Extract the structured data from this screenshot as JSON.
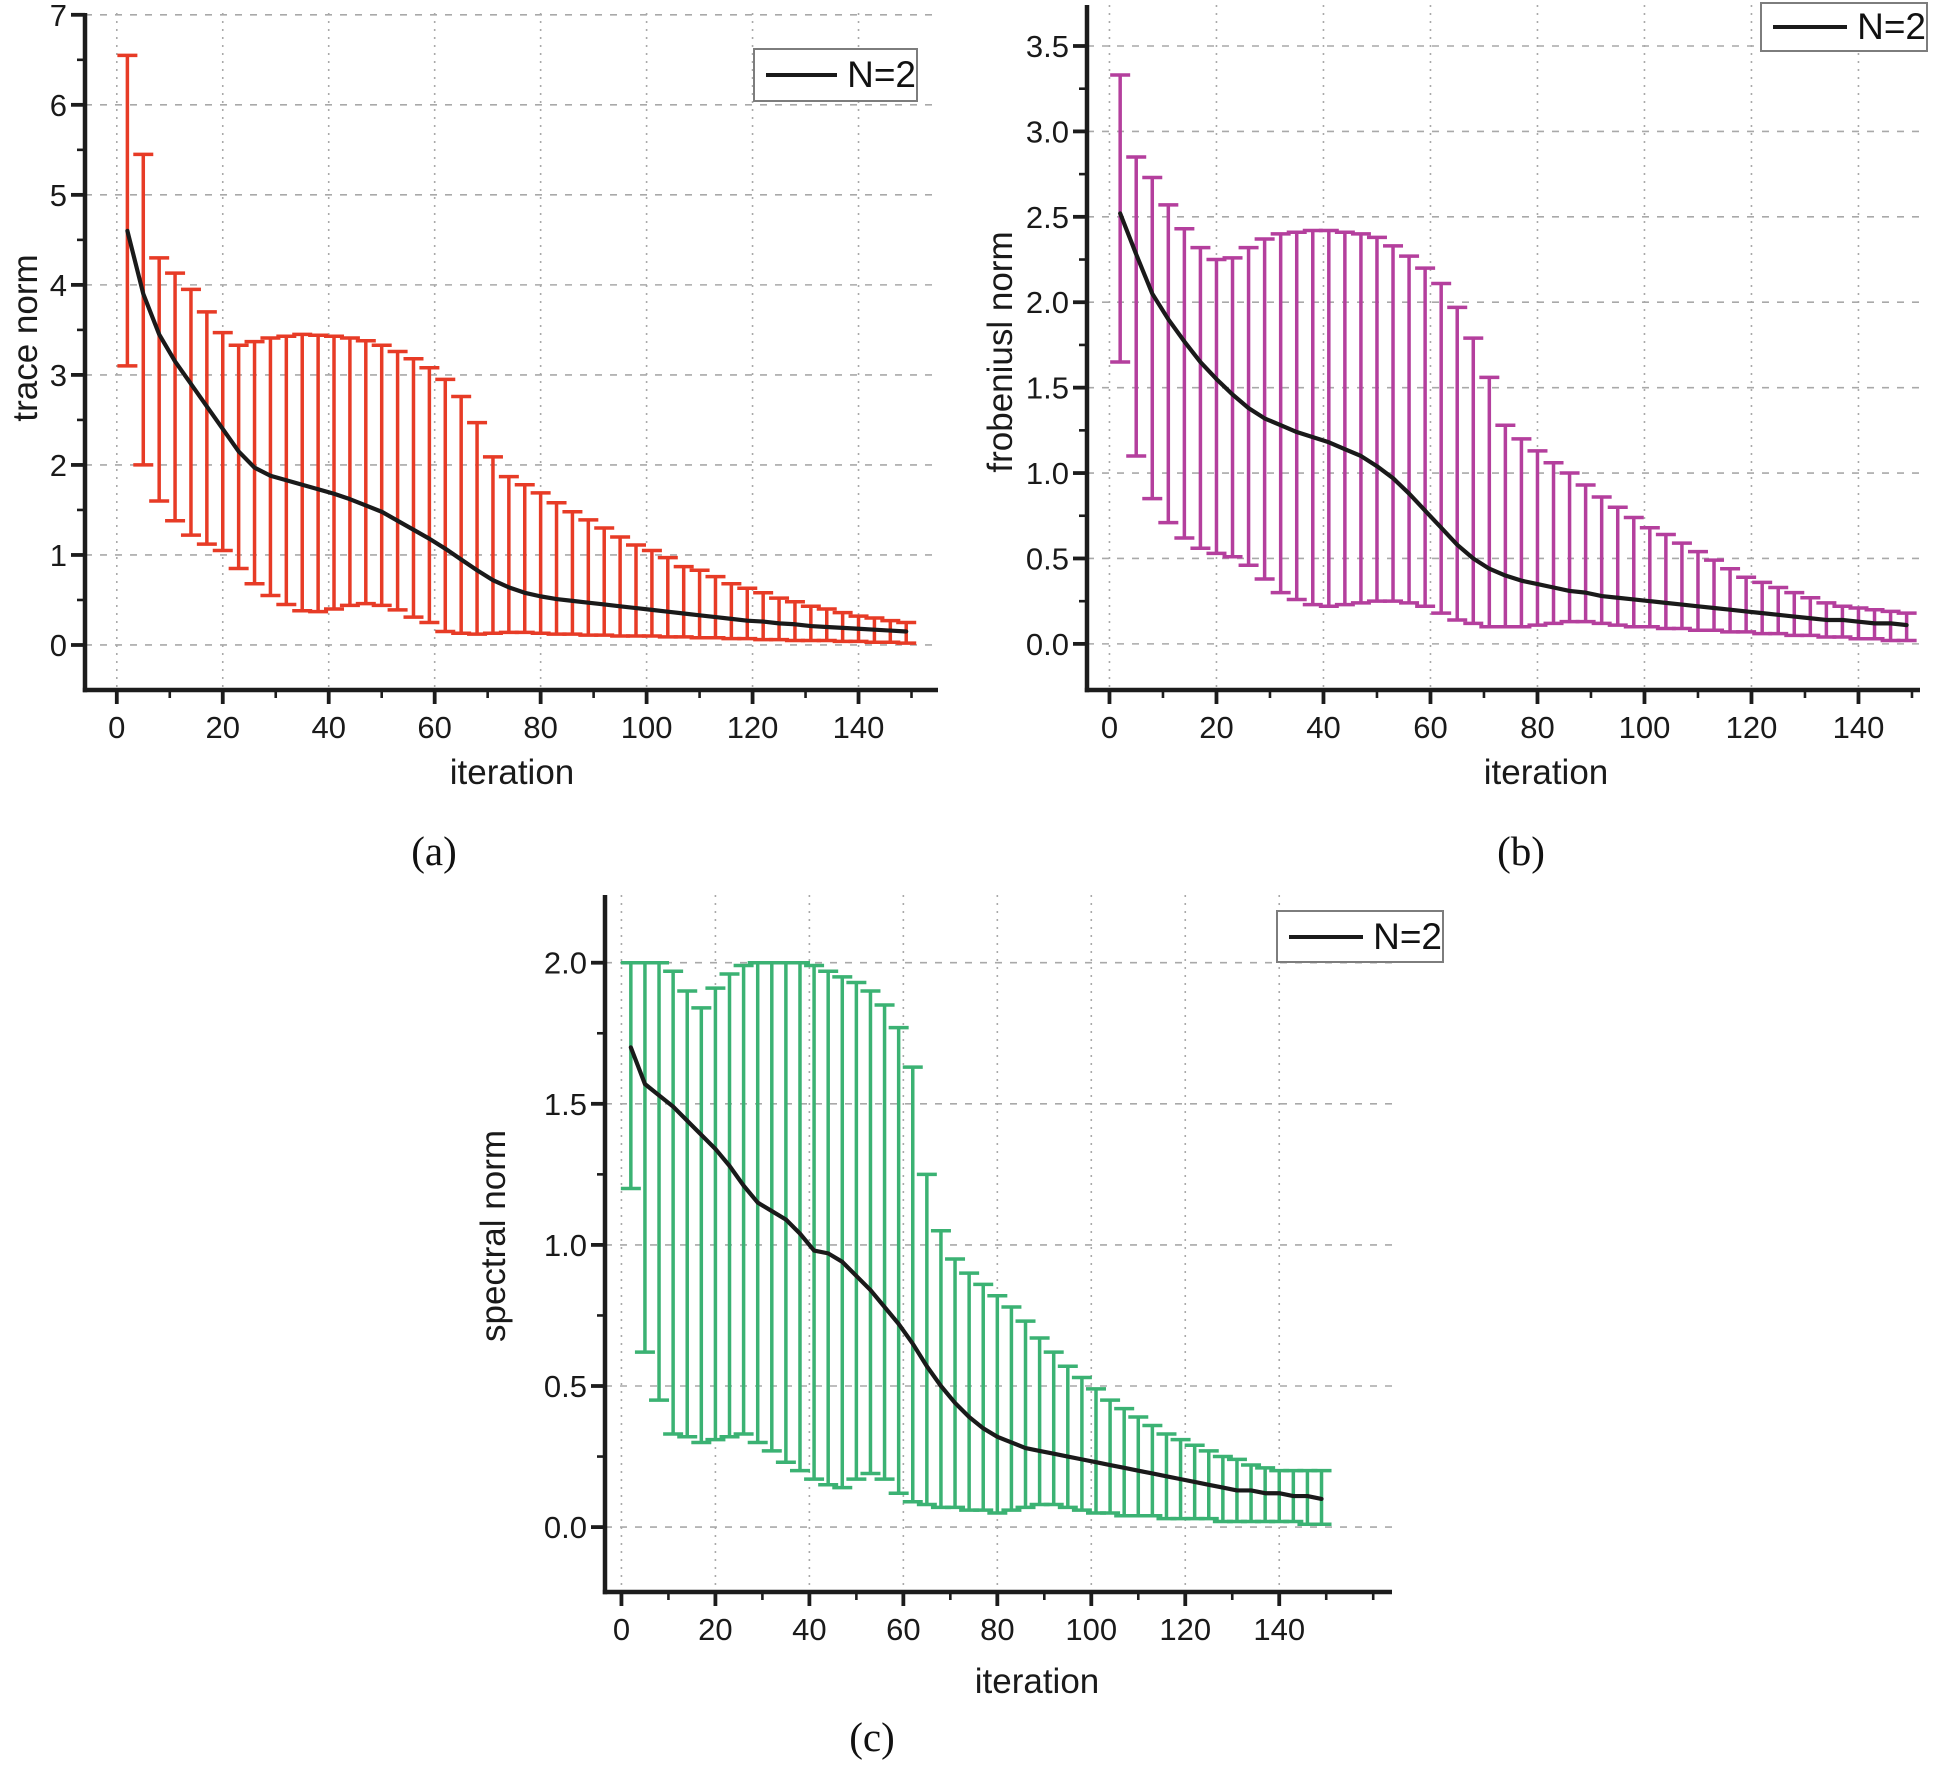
{
  "page": {
    "background": "#ffffff"
  },
  "chart_data": [
    {
      "type": "line",
      "panel": "a",
      "caption": "(a)",
      "xlabel": "iteration",
      "ylabel": "trace norm",
      "legend": {
        "label": "N=2",
        "line_color": "#1a1a1a",
        "position": "top-right"
      },
      "series_color": "#e73b26",
      "mean_line_color": "#1a1a1a",
      "grid": true,
      "xlim": [
        -6,
        155
      ],
      "ylim": [
        -0.5,
        7.02
      ],
      "xticks": {
        "values": [
          0,
          20,
          40,
          60,
          80,
          100,
          120,
          140
        ],
        "labels": [
          "0",
          "20",
          "40",
          "60",
          "80",
          "100",
          "120",
          "140"
        ],
        "minor": [
          10,
          30,
          50,
          70,
          90,
          110,
          130,
          150
        ]
      },
      "yticks": {
        "values": [
          0,
          1,
          2,
          3,
          4,
          5,
          6,
          7
        ],
        "labels": [
          "0",
          "1",
          "2",
          "3",
          "4",
          "5",
          "6",
          "7"
        ],
        "minor": [
          0.5,
          1.5,
          2.5,
          3.5,
          4.5,
          5.5,
          6.5
        ]
      },
      "x": [
        2,
        5,
        8,
        11,
        14,
        17,
        20,
        23,
        26,
        29,
        32,
        35,
        38,
        41,
        44,
        47,
        50,
        53,
        56,
        59,
        62,
        65,
        68,
        71,
        74,
        77,
        80,
        83,
        86,
        89,
        92,
        95,
        98,
        101,
        104,
        107,
        110,
        113,
        116,
        119,
        122,
        125,
        128,
        131,
        134,
        137,
        140,
        143,
        146,
        149
      ],
      "mean": [
        4.6,
        3.9,
        3.45,
        3.15,
        2.9,
        2.65,
        2.4,
        2.15,
        1.97,
        1.88,
        1.83,
        1.78,
        1.73,
        1.68,
        1.62,
        1.55,
        1.48,
        1.38,
        1.28,
        1.18,
        1.07,
        0.95,
        0.83,
        0.72,
        0.64,
        0.58,
        0.54,
        0.51,
        0.49,
        0.47,
        0.45,
        0.43,
        0.41,
        0.39,
        0.37,
        0.35,
        0.33,
        0.31,
        0.29,
        0.27,
        0.26,
        0.24,
        0.23,
        0.21,
        0.2,
        0.19,
        0.18,
        0.17,
        0.16,
        0.15
      ],
      "upper": [
        6.55,
        5.45,
        4.3,
        4.13,
        3.95,
        3.7,
        3.47,
        3.33,
        3.37,
        3.41,
        3.43,
        3.45,
        3.44,
        3.43,
        3.41,
        3.38,
        3.33,
        3.26,
        3.18,
        3.08,
        2.95,
        2.76,
        2.47,
        2.09,
        1.87,
        1.78,
        1.69,
        1.58,
        1.48,
        1.39,
        1.3,
        1.2,
        1.11,
        1.05,
        0.97,
        0.87,
        0.83,
        0.76,
        0.68,
        0.63,
        0.58,
        0.52,
        0.48,
        0.43,
        0.4,
        0.36,
        0.32,
        0.3,
        0.27,
        0.25
      ],
      "lower": [
        3.1,
        2.0,
        1.6,
        1.38,
        1.22,
        1.12,
        1.05,
        0.85,
        0.68,
        0.55,
        0.45,
        0.38,
        0.37,
        0.4,
        0.44,
        0.46,
        0.44,
        0.39,
        0.31,
        0.25,
        0.15,
        0.13,
        0.12,
        0.13,
        0.14,
        0.14,
        0.13,
        0.12,
        0.12,
        0.11,
        0.11,
        0.1,
        0.1,
        0.1,
        0.09,
        0.09,
        0.08,
        0.08,
        0.07,
        0.07,
        0.06,
        0.06,
        0.05,
        0.05,
        0.05,
        0.04,
        0.04,
        0.03,
        0.03,
        0.02
      ]
    },
    {
      "type": "line",
      "panel": "b",
      "caption": "(b)",
      "xlabel": "iteration",
      "ylabel": "frobeniusl norm",
      "legend": {
        "label": "N=2",
        "line_color": "#1a1a1a",
        "position": "top-right"
      },
      "series_color": "#b43f9d",
      "mean_line_color": "#1a1a1a",
      "grid": true,
      "xlim": [
        -4.2,
        151.5
      ],
      "ylim": [
        -0.27,
        3.74
      ],
      "xticks": {
        "values": [
          0,
          20,
          40,
          60,
          80,
          100,
          120,
          140
        ],
        "labels": [
          "0",
          "20",
          "40",
          "60",
          "80",
          "100",
          "120",
          "140"
        ],
        "minor": [
          10,
          30,
          50,
          70,
          90,
          110,
          130,
          150
        ]
      },
      "yticks": {
        "values": [
          0,
          0.5,
          1,
          1.5,
          2,
          2.5,
          3,
          3.5
        ],
        "labels": [
          "0.0",
          "0.5",
          "1.0",
          "1.5",
          "2.0",
          "2.5",
          "3.0",
          "3.5"
        ],
        "minor": [
          0.25,
          0.75,
          1.25,
          1.75,
          2.25,
          2.75,
          3.25
        ]
      },
      "x": [
        2,
        5,
        8,
        11,
        14,
        17,
        20,
        23,
        26,
        29,
        32,
        35,
        38,
        41,
        44,
        47,
        50,
        53,
        56,
        59,
        62,
        65,
        68,
        71,
        74,
        77,
        80,
        83,
        86,
        89,
        92,
        95,
        98,
        101,
        104,
        107,
        110,
        113,
        116,
        119,
        122,
        125,
        128,
        131,
        134,
        137,
        140,
        143,
        146,
        149
      ],
      "mean": [
        2.52,
        2.28,
        2.05,
        1.9,
        1.77,
        1.65,
        1.55,
        1.46,
        1.38,
        1.32,
        1.28,
        1.24,
        1.21,
        1.18,
        1.14,
        1.1,
        1.04,
        0.97,
        0.88,
        0.78,
        0.68,
        0.58,
        0.5,
        0.44,
        0.4,
        0.37,
        0.35,
        0.33,
        0.31,
        0.3,
        0.28,
        0.27,
        0.26,
        0.25,
        0.24,
        0.23,
        0.22,
        0.21,
        0.2,
        0.19,
        0.18,
        0.17,
        0.16,
        0.15,
        0.14,
        0.14,
        0.13,
        0.12,
        0.12,
        0.11
      ],
      "upper": [
        3.33,
        2.85,
        2.73,
        2.57,
        2.43,
        2.32,
        2.25,
        2.26,
        2.32,
        2.37,
        2.4,
        2.41,
        2.42,
        2.42,
        2.41,
        2.4,
        2.38,
        2.33,
        2.27,
        2.2,
        2.11,
        1.97,
        1.79,
        1.56,
        1.28,
        1.2,
        1.13,
        1.06,
        1.0,
        0.93,
        0.86,
        0.8,
        0.74,
        0.68,
        0.64,
        0.59,
        0.54,
        0.49,
        0.44,
        0.39,
        0.36,
        0.33,
        0.3,
        0.27,
        0.24,
        0.22,
        0.21,
        0.2,
        0.19,
        0.18
      ],
      "lower": [
        1.65,
        1.1,
        0.85,
        0.71,
        0.62,
        0.56,
        0.53,
        0.51,
        0.46,
        0.38,
        0.3,
        0.26,
        0.23,
        0.22,
        0.23,
        0.24,
        0.25,
        0.25,
        0.24,
        0.22,
        0.18,
        0.14,
        0.12,
        0.1,
        0.1,
        0.1,
        0.11,
        0.12,
        0.13,
        0.13,
        0.12,
        0.11,
        0.1,
        0.1,
        0.09,
        0.09,
        0.08,
        0.08,
        0.07,
        0.07,
        0.06,
        0.06,
        0.05,
        0.05,
        0.04,
        0.04,
        0.03,
        0.03,
        0.02,
        0.02
      ]
    },
    {
      "type": "line",
      "panel": "c",
      "caption": "(c)",
      "xlabel": "iteration",
      "ylabel": "spectral norm",
      "legend": {
        "label": "N=2",
        "line_color": "#1a1a1a",
        "position": "top-right"
      },
      "series_color": "#3bb273",
      "mean_line_color": "#1a1a1a",
      "grid": true,
      "xlim": [
        -3.5,
        164
      ],
      "ylim": [
        -0.23,
        2.24
      ],
      "xticks": {
        "values": [
          0,
          20,
          40,
          60,
          80,
          100,
          120,
          140
        ],
        "labels": [
          "0",
          "20",
          "40",
          "60",
          "80",
          "100",
          "120",
          "140"
        ],
        "minor": [
          10,
          30,
          50,
          70,
          90,
          110,
          130,
          150,
          160
        ]
      },
      "yticks": {
        "values": [
          0,
          0.5,
          1,
          1.5,
          2
        ],
        "labels": [
          "0.0",
          "0.5",
          "1.0",
          "1.5",
          "2.0"
        ],
        "minor": [
          0.25,
          0.75,
          1.25,
          1.75
        ]
      },
      "x": [
        2,
        5,
        8,
        11,
        14,
        17,
        20,
        23,
        26,
        29,
        32,
        35,
        38,
        41,
        44,
        47,
        50,
        53,
        56,
        59,
        62,
        65,
        68,
        71,
        74,
        77,
        80,
        83,
        86,
        89,
        92,
        95,
        98,
        101,
        104,
        107,
        110,
        113,
        116,
        119,
        122,
        125,
        128,
        131,
        134,
        137,
        140,
        143,
        146,
        149
      ],
      "mean": [
        1.7,
        1.57,
        1.53,
        1.49,
        1.44,
        1.39,
        1.34,
        1.28,
        1.21,
        1.15,
        1.12,
        1.09,
        1.04,
        0.98,
        0.97,
        0.94,
        0.89,
        0.84,
        0.78,
        0.72,
        0.65,
        0.57,
        0.5,
        0.44,
        0.39,
        0.35,
        0.32,
        0.3,
        0.28,
        0.27,
        0.26,
        0.25,
        0.24,
        0.23,
        0.22,
        0.21,
        0.2,
        0.19,
        0.18,
        0.17,
        0.16,
        0.15,
        0.14,
        0.13,
        0.13,
        0.12,
        0.12,
        0.11,
        0.11,
        0.1
      ],
      "upper": [
        2.0,
        2.0,
        2.0,
        1.97,
        1.9,
        1.84,
        1.91,
        1.96,
        1.99,
        2.0,
        2.0,
        2.0,
        2.0,
        1.99,
        1.97,
        1.95,
        1.93,
        1.9,
        1.85,
        1.77,
        1.63,
        1.25,
        1.05,
        0.95,
        0.9,
        0.86,
        0.82,
        0.78,
        0.73,
        0.67,
        0.62,
        0.57,
        0.53,
        0.49,
        0.45,
        0.42,
        0.39,
        0.36,
        0.33,
        0.31,
        0.29,
        0.27,
        0.25,
        0.24,
        0.22,
        0.21,
        0.2,
        0.2,
        0.2,
        0.2
      ],
      "lower": [
        1.2,
        0.62,
        0.45,
        0.33,
        0.32,
        0.3,
        0.31,
        0.32,
        0.33,
        0.3,
        0.27,
        0.23,
        0.2,
        0.17,
        0.15,
        0.14,
        0.17,
        0.19,
        0.17,
        0.12,
        0.09,
        0.08,
        0.07,
        0.07,
        0.06,
        0.06,
        0.05,
        0.06,
        0.07,
        0.08,
        0.08,
        0.07,
        0.06,
        0.05,
        0.05,
        0.04,
        0.04,
        0.04,
        0.03,
        0.03,
        0.03,
        0.03,
        0.02,
        0.02,
        0.02,
        0.02,
        0.02,
        0.02,
        0.01,
        0.01
      ]
    }
  ],
  "style": {
    "grid_color": "#a9a9a9",
    "axis_color": "#1c1c1c",
    "text_color": "#1a1a1a"
  }
}
